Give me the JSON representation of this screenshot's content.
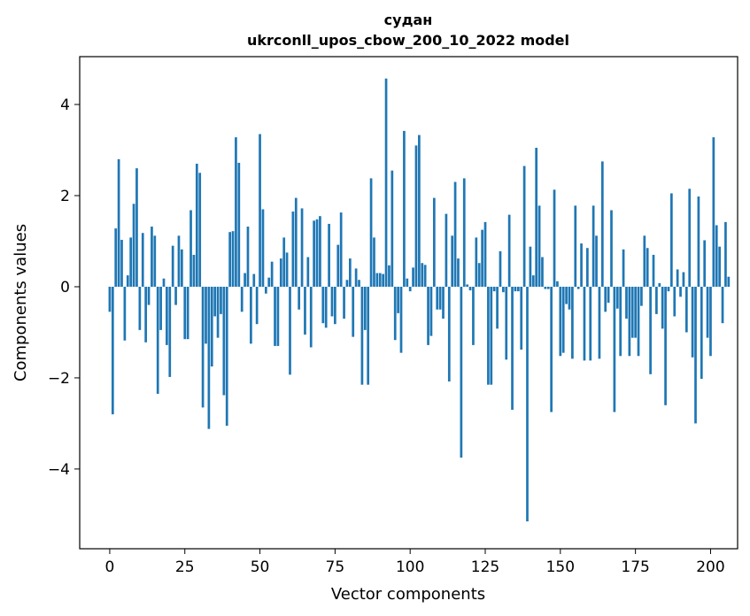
{
  "chart_data": {
    "type": "bar",
    "title": "судан",
    "subtitle": "ukrconll_upos_cbow_200_10_2022 model",
    "xlabel": "Vector components",
    "ylabel": "Components values",
    "xlim": [
      -10,
      209
    ],
    "ylim": [
      -5.75,
      5.05
    ],
    "xticks": [
      0,
      25,
      50,
      75,
      100,
      125,
      150,
      175,
      200
    ],
    "yticks": [
      -4,
      -2,
      0,
      2,
      4
    ],
    "xtick_labels": [
      "0",
      "25",
      "50",
      "75",
      "100",
      "125",
      "150",
      "175",
      "200"
    ],
    "ytick_labels": [
      "−4",
      "−2",
      "0",
      "2",
      "4"
    ],
    "grid": false,
    "bar_color": "#1f77b4",
    "values": [
      -0.55,
      -2.8,
      1.28,
      2.8,
      1.03,
      -1.18,
      0.25,
      1.08,
      1.82,
      2.6,
      -0.95,
      1.18,
      -1.22,
      -0.4,
      1.32,
      1.12,
      -2.35,
      -0.95,
      0.18,
      -1.28,
      -1.98,
      0.9,
      -0.4,
      1.12,
      0.82,
      -1.15,
      -1.15,
      1.68,
      0.7,
      2.7,
      2.5,
      -2.65,
      -1.25,
      -3.12,
      -1.75,
      -0.65,
      -1.12,
      -0.6,
      -2.38,
      -3.05,
      1.2,
      1.22,
      3.28,
      2.72,
      -0.55,
      0.3,
      1.32,
      -1.25,
      0.28,
      -0.82,
      3.35,
      1.7,
      -0.15,
      0.2,
      0.55,
      -1.3,
      -1.3,
      0.62,
      1.08,
      0.75,
      -1.93,
      1.65,
      1.95,
      -0.5,
      1.72,
      -1.05,
      0.65,
      -1.33,
      1.45,
      1.48,
      1.55,
      -0.8,
      -0.9,
      1.38,
      -0.65,
      -0.82,
      0.92,
      1.63,
      -0.7,
      0.15,
      0.62,
      -1.1,
      0.4,
      0.15,
      -2.15,
      -0.95,
      -2.15,
      2.38,
      1.08,
      0.3,
      0.3,
      0.28,
      4.57,
      0.47,
      2.55,
      -1.17,
      -0.58,
      -1.45,
      3.42,
      0.18,
      -0.1,
      0.42,
      3.1,
      3.33,
      0.52,
      0.48,
      -1.28,
      -1.08,
      1.95,
      -0.5,
      -0.5,
      -0.7,
      1.6,
      -2.08,
      1.12,
      2.3,
      0.62,
      -3.75,
      2.38,
      0.05,
      -0.08,
      -1.28,
      1.08,
      0.52,
      1.25,
      1.42,
      -2.15,
      -2.15,
      -0.1,
      -0.92,
      0.78,
      -0.12,
      -1.6,
      1.58,
      -2.7,
      -0.1,
      -0.1,
      -1.38,
      2.65,
      -5.15,
      0.88,
      0.25,
      3.05,
      1.78,
      0.65,
      -0.05,
      -0.05,
      -2.75,
      2.13,
      0.12,
      -1.52,
      -1.45,
      -0.38,
      -0.5,
      -1.58,
      1.78,
      -0.05,
      0.95,
      -1.62,
      0.85,
      -1.62,
      1.78,
      1.12,
      -1.58,
      2.75,
      -0.55,
      -0.35,
      1.68,
      -2.75,
      -0.48,
      -1.52,
      0.82,
      -0.7,
      -1.52,
      -1.12,
      -1.12,
      -1.52,
      -0.42,
      1.12,
      0.85,
      -1.92,
      0.7,
      -0.6,
      0.08,
      -0.92,
      -2.6,
      -0.1,
      2.05,
      -0.65,
      0.38,
      -0.22,
      0.32,
      -1.0,
      2.15,
      -1.55,
      -3.0,
      1.98,
      -2.02,
      1.02,
      -1.12,
      -1.52,
      3.28,
      1.35,
      0.88,
      -0.8,
      1.42,
      0.22
    ]
  }
}
